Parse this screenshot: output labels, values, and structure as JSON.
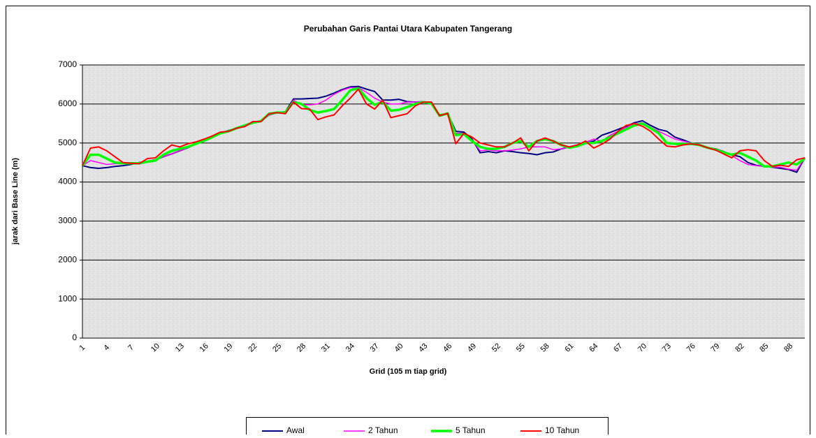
{
  "chart_data": {
    "type": "line",
    "title": "Perubahan Garis Pantai Utara Kabupaten Tangerang",
    "x_label": "Grid (105 m tiap grid)",
    "y_label": "jarak dari Base Line (m)",
    "categories": [
      1,
      null,
      null,
      4,
      null,
      null,
      7,
      null,
      null,
      10,
      null,
      null,
      13,
      null,
      null,
      16,
      null,
      null,
      19,
      null,
      null,
      22,
      null,
      null,
      25,
      null,
      null,
      28,
      null,
      null,
      31,
      null,
      null,
      34,
      null,
      null,
      37,
      null,
      null,
      40,
      null,
      null,
      43,
      null,
      null,
      46,
      null,
      null,
      49,
      null,
      null,
      52,
      null,
      null,
      55,
      null,
      null,
      58,
      null,
      null,
      61,
      null,
      null,
      64,
      null,
      null,
      67,
      null,
      null,
      70,
      null,
      null,
      73,
      null,
      null,
      76,
      null,
      null,
      79,
      null,
      null,
      82,
      null,
      null,
      85,
      null,
      null,
      88,
      null,
      null
    ],
    "ylim": [
      0,
      7000
    ],
    "yticks": [
      0,
      1000,
      2000,
      3000,
      4000,
      5000,
      6000,
      7000
    ],
    "grid": true,
    "legend": "bottom",
    "series": [
      {
        "name": "Awal",
        "color": "#000080",
        "values": [
          4420,
          4370,
          4350,
          4370,
          4400,
          4420,
          4450,
          4500,
          4530,
          4570,
          4650,
          4720,
          4800,
          4880,
          4980,
          5060,
          5150,
          5250,
          5320,
          5380,
          5430,
          5520,
          5560,
          5720,
          5780,
          5800,
          6130,
          6130,
          6140,
          6150,
          6200,
          6280,
          6370,
          6440,
          6450,
          6380,
          6320,
          6100,
          6100,
          6120,
          6060,
          6050,
          6060,
          6020,
          5720,
          5760,
          5300,
          5280,
          5100,
          4750,
          4780,
          4750,
          4800,
          4780,
          4750,
          4730,
          4700,
          4750,
          4770,
          4850,
          4900,
          4950,
          5000,
          5050,
          5200,
          5270,
          5350,
          5430,
          5520,
          5570,
          5450,
          5350,
          5300,
          5150,
          5080,
          5000,
          4950,
          4880,
          4850,
          4780,
          4700,
          4650,
          4500,
          4430,
          4400,
          4380,
          4350,
          4320,
          4250,
          4620
        ]
      },
      {
        "name": "2 Tahun",
        "color": "#ff00ff",
        "values": [
          4420,
          4550,
          4500,
          4450,
          4470,
          4470,
          4480,
          4500,
          4530,
          4570,
          4650,
          4720,
          4800,
          4880,
          4980,
          5060,
          5150,
          5250,
          5300,
          5380,
          5430,
          5520,
          5560,
          5720,
          5780,
          5780,
          6100,
          5980,
          5980,
          6000,
          6100,
          6250,
          6350,
          6420,
          6420,
          6300,
          6150,
          6050,
          6000,
          6000,
          6050,
          6050,
          6060,
          6020,
          5720,
          5760,
          5250,
          5250,
          5080,
          4800,
          4820,
          4800,
          4800,
          4820,
          4850,
          4900,
          4900,
          4900,
          4830,
          4850,
          4900,
          4950,
          5020,
          5100,
          5050,
          5200,
          5300,
          5400,
          5480,
          5520,
          5400,
          5300,
          5200,
          5100,
          5050,
          5000,
          4950,
          4880,
          4840,
          4780,
          4680,
          4550,
          4450,
          4420,
          4400,
          4380,
          4380,
          4330,
          4300,
          4620
        ]
      },
      {
        "name": "5 Tahun",
        "color": "#00ff00",
        "values": [
          4420,
          4700,
          4700,
          4600,
          4500,
          4480,
          4480,
          4480,
          4520,
          4550,
          4700,
          4800,
          4850,
          4900,
          4980,
          5060,
          5150,
          5250,
          5300,
          5380,
          5450,
          5520,
          5560,
          5750,
          5780,
          5780,
          6050,
          6000,
          5850,
          5780,
          5820,
          5870,
          6100,
          6350,
          6400,
          6150,
          5980,
          6050,
          5830,
          5850,
          5920,
          6000,
          6050,
          6020,
          5700,
          5760,
          5200,
          5230,
          5050,
          4900,
          4850,
          4850,
          4900,
          5000,
          5050,
          4900,
          5050,
          5100,
          5050,
          4950,
          4880,
          4920,
          5000,
          5000,
          5050,
          5150,
          5250,
          5350,
          5450,
          5500,
          5380,
          5250,
          5000,
          4980,
          4970,
          4980,
          4950,
          4880,
          4830,
          4760,
          4700,
          4750,
          4650,
          4550,
          4400,
          4400,
          4450,
          4500,
          4450,
          4600
        ]
      },
      {
        "name": "10 Tahun",
        "color": "#ff0000",
        "values": [
          4420,
          4870,
          4900,
          4800,
          4650,
          4500,
          4480,
          4470,
          4600,
          4620,
          4800,
          4950,
          4900,
          4980,
          5030,
          5100,
          5180,
          5280,
          5300,
          5380,
          5420,
          5550,
          5550,
          5750,
          5780,
          5750,
          6050,
          5880,
          5870,
          5600,
          5670,
          5720,
          5950,
          6150,
          6380,
          6000,
          5870,
          6100,
          5650,
          5700,
          5750,
          5950,
          6050,
          6050,
          5700,
          5760,
          4980,
          5250,
          5150,
          5000,
          4950,
          4900,
          4900,
          5000,
          5130,
          4800,
          5050,
          5130,
          5050,
          4950,
          4900,
          4950,
          5050,
          4870,
          4970,
          5100,
          5300,
          5450,
          5500,
          5430,
          5300,
          5100,
          4920,
          4900,
          4950,
          4980,
          4950,
          4880,
          4820,
          4720,
          4620,
          4800,
          4830,
          4800,
          4550,
          4400,
          4430,
          4400,
          4570,
          4620
        ]
      }
    ]
  }
}
